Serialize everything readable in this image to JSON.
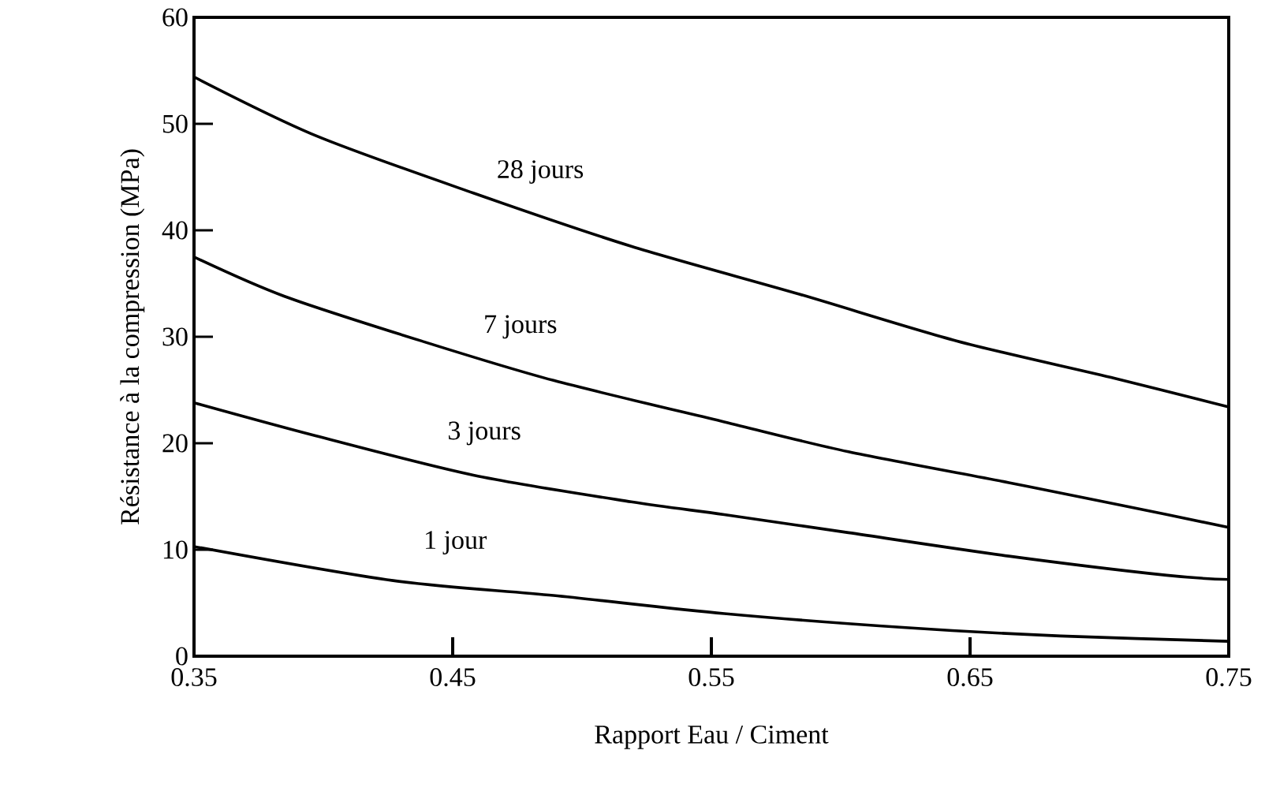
{
  "chart_data": {
    "type": "line",
    "xlabel": "Rapport Eau / Ciment",
    "ylabel": "Résistance à la compression (MPa)",
    "xlim": [
      0.35,
      0.75
    ],
    "ylim": [
      0,
      60
    ],
    "xticks": [
      0.35,
      0.45,
      0.55,
      0.65,
      0.75
    ],
    "yticks": [
      0,
      10,
      20,
      30,
      40,
      50,
      60
    ],
    "marker": "none",
    "line_style": "solid",
    "series": [
      {
        "name": "28 jours",
        "color": "#000000",
        "x": [
          0.35,
          0.397,
          0.458,
          0.519,
          0.584,
          0.645,
          0.706,
          0.75
        ],
        "values": [
          54.4,
          48.9,
          43.5,
          38.5,
          34.0,
          29.6,
          26.1,
          23.4
        ]
      },
      {
        "name": "7 jours",
        "color": "#000000",
        "x": [
          0.35,
          0.385,
          0.438,
          0.489,
          0.555,
          0.603,
          0.665,
          0.706,
          0.75
        ],
        "values": [
          37.5,
          33.8,
          29.6,
          25.9,
          22.0,
          19.2,
          16.3,
          14.3,
          12.1
        ]
      },
      {
        "name": "3 jours",
        "color": "#000000",
        "x": [
          0.35,
          0.397,
          0.458,
          0.519,
          0.555,
          0.603,
          0.665,
          0.726,
          0.75
        ],
        "values": [
          23.8,
          20.7,
          17.0,
          14.5,
          13.3,
          11.6,
          9.4,
          7.6,
          7.2
        ]
      },
      {
        "name": "1 jour",
        "color": "#000000",
        "x": [
          0.35,
          0.427,
          0.489,
          0.555,
          0.624,
          0.685,
          0.75
        ],
        "values": [
          10.3,
          7.1,
          5.7,
          4.0,
          2.7,
          1.9,
          1.4
        ]
      }
    ]
  }
}
